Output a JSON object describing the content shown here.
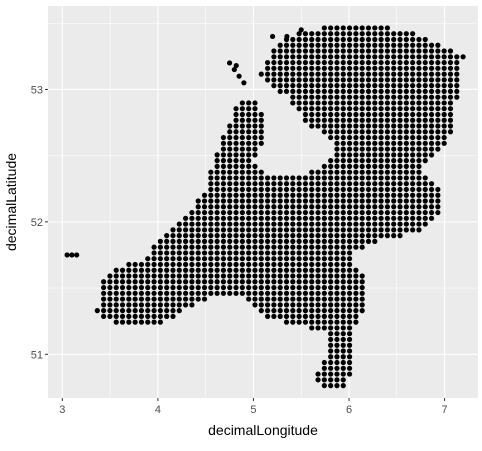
{
  "chart_data": {
    "type": "scatter",
    "title": "",
    "xlabel": "decimalLongitude",
    "ylabel": "decimalLatitude",
    "xlim": [
      2.85,
      7.35
    ],
    "ylim": [
      50.67,
      53.63
    ],
    "xticks": [
      3,
      4,
      5,
      6,
      7
    ],
    "yticks": [
      51,
      52,
      53
    ],
    "grid": true,
    "legend": "none",
    "grid_step_deg": 0.066,
    "panel_color": "#ebebeb",
    "grid_color": "#ffffff",
    "point_color": "#000000",
    "region_polygon": [
      [
        3.35,
        51.3
      ],
      [
        3.6,
        51.22
      ],
      [
        3.95,
        51.2
      ],
      [
        4.25,
        51.32
      ],
      [
        4.55,
        51.42
      ],
      [
        4.85,
        51.45
      ],
      [
        5.15,
        51.28
      ],
      [
        5.45,
        51.22
      ],
      [
        5.75,
        51.18
      ],
      [
        5.78,
        51.0
      ],
      [
        5.65,
        50.86
      ],
      [
        5.68,
        50.76
      ],
      [
        6.0,
        50.76
      ],
      [
        6.02,
        50.96
      ],
      [
        6.05,
        51.2
      ],
      [
        6.2,
        51.4
      ],
      [
        6.2,
        51.55
      ],
      [
        6.0,
        51.75
      ],
      [
        6.3,
        51.85
      ],
      [
        6.75,
        51.92
      ],
      [
        7.0,
        52.1
      ],
      [
        6.95,
        52.25
      ],
      [
        6.72,
        52.4
      ],
      [
        7.05,
        52.6
      ],
      [
        7.2,
        53.25
      ],
      [
        6.95,
        53.35
      ],
      [
        6.6,
        53.45
      ],
      [
        6.0,
        53.5
      ],
      [
        5.6,
        53.45
      ],
      [
        5.3,
        53.4
      ],
      [
        5.05,
        53.1
      ],
      [
        5.35,
        52.95
      ],
      [
        5.55,
        52.75
      ],
      [
        5.85,
        52.6
      ],
      [
        5.8,
        52.45
      ],
      [
        5.5,
        52.35
      ],
      [
        5.15,
        52.35
      ],
      [
        5.0,
        52.45
      ],
      [
        5.15,
        52.7
      ],
      [
        5.05,
        52.9
      ],
      [
        4.85,
        52.95
      ],
      [
        4.75,
        52.75
      ],
      [
        4.6,
        52.5
      ],
      [
        4.5,
        52.25
      ],
      [
        4.3,
        52.05
      ],
      [
        4.05,
        51.9
      ],
      [
        3.95,
        51.8
      ],
      [
        3.8,
        51.7
      ],
      [
        3.55,
        51.65
      ],
      [
        3.4,
        51.55
      ],
      [
        3.4,
        51.4
      ]
    ],
    "outlier_points": [
      [
        3.05,
        51.75
      ],
      [
        3.1,
        51.75
      ],
      [
        3.15,
        51.75
      ],
      [
        4.8,
        53.15
      ],
      [
        4.85,
        53.1
      ],
      [
        4.9,
        53.05
      ],
      [
        4.75,
        53.2
      ],
      [
        4.82,
        53.18
      ],
      [
        5.2,
        53.4
      ],
      [
        5.35,
        53.4
      ],
      [
        5.5,
        53.45
      ]
    ]
  }
}
